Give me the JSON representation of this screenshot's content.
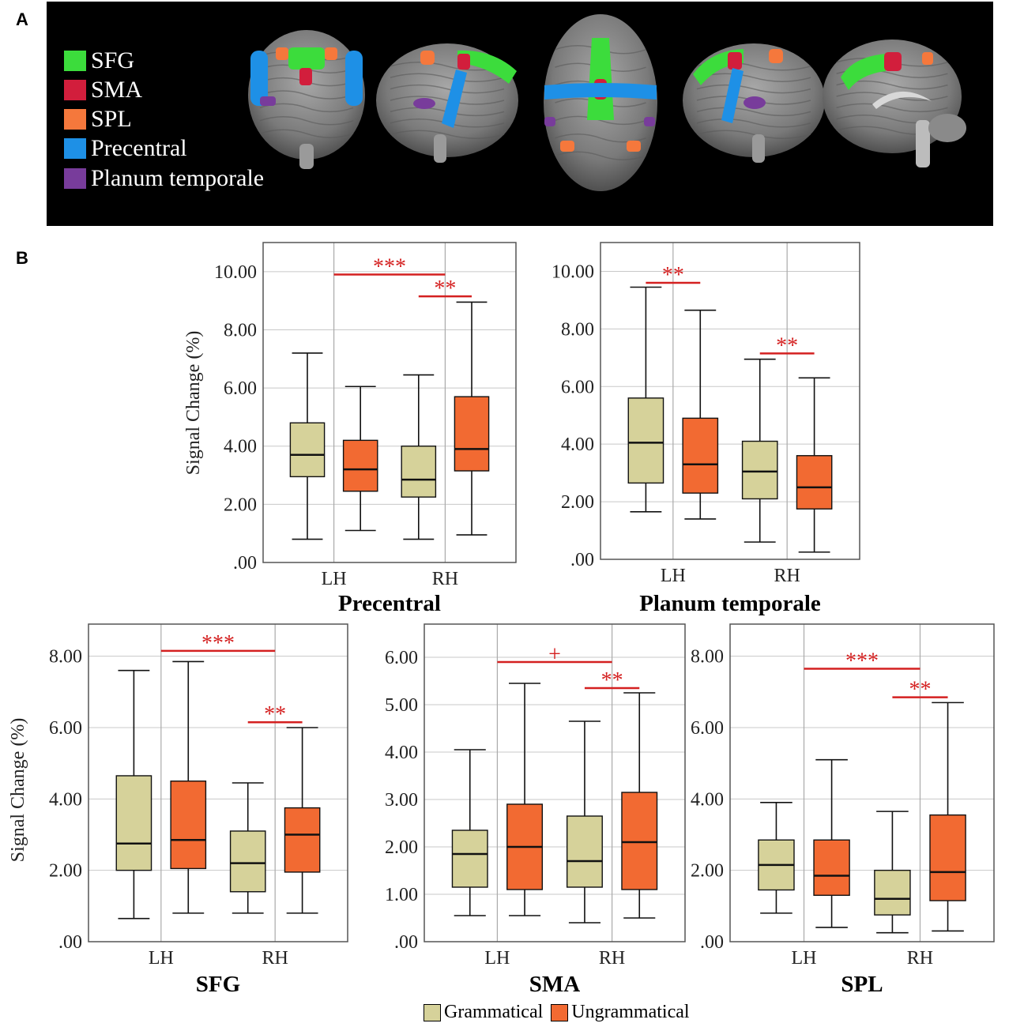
{
  "panel_a": {
    "label": "A",
    "legend": [
      {
        "label": "SFG",
        "color": "#3cdc3c"
      },
      {
        "label": "SMA",
        "color": "#d21e3c"
      },
      {
        "label": "SPL",
        "color": "#f5783c"
      },
      {
        "label": "Precentral",
        "color": "#1e90e6"
      },
      {
        "label": "Planum temporale",
        "color": "#783c9b"
      }
    ],
    "views": [
      "anterior-view",
      "left-lateral-view",
      "superior-view",
      "right-lateral-view",
      "medial-view"
    ]
  },
  "panel_b": {
    "label": "B"
  },
  "colors": {
    "grammatical": "#d6d29a",
    "ungrammatical": "#f26a32",
    "significance": "#d42020"
  },
  "legend_bottom": [
    "Grammatical",
    "Ungrammatical"
  ],
  "chart_data": [
    {
      "type": "boxplot",
      "title": "Precentral",
      "ylabel": "Signal Change (%)",
      "ylim": [
        0,
        11
      ],
      "yticks": [
        0,
        2,
        4,
        6,
        8,
        10
      ],
      "ytick_labels": [
        ".00",
        "2.00",
        "4.00",
        "6.00",
        "8.00",
        "10.00"
      ],
      "categories": [
        "LH",
        "RH"
      ],
      "grid": true,
      "series": [
        {
          "name": "Grammatical",
          "boxes": [
            {
              "min": 0.8,
              "q1": 2.95,
              "median": 3.7,
              "q3": 4.8,
              "max": 7.2
            },
            {
              "min": 0.8,
              "q1": 2.25,
              "median": 2.85,
              "q3": 4.0,
              "max": 6.45
            }
          ]
        },
        {
          "name": "Ungrammatical",
          "boxes": [
            {
              "min": 1.1,
              "q1": 2.45,
              "median": 3.2,
              "q3": 4.2,
              "max": 6.05
            },
            {
              "min": 0.95,
              "q1": 3.15,
              "median": 3.9,
              "q3": 5.7,
              "max": 8.95
            }
          ]
        }
      ],
      "annotations": [
        {
          "text": "***",
          "from": "LH-center",
          "to": "RH-center",
          "y": 9.9
        },
        {
          "text": "**",
          "from": "RH-grammatical",
          "to": "RH-ungrammatical",
          "y": 9.15
        }
      ]
    },
    {
      "type": "boxplot",
      "title": "Planum temporale",
      "ylabel": "",
      "ylim": [
        0,
        11
      ],
      "yticks": [
        0,
        2,
        4,
        6,
        8,
        10
      ],
      "ytick_labels": [
        ".00",
        "2.00",
        "4.00",
        "6.00",
        "8.00",
        "10.00"
      ],
      "categories": [
        "LH",
        "RH"
      ],
      "grid": true,
      "series": [
        {
          "name": "Grammatical",
          "boxes": [
            {
              "min": 1.65,
              "q1": 2.65,
              "median": 4.05,
              "q3": 5.6,
              "max": 9.45
            },
            {
              "min": 0.6,
              "q1": 2.1,
              "median": 3.05,
              "q3": 4.1,
              "max": 6.95
            }
          ]
        },
        {
          "name": "Ungrammatical",
          "boxes": [
            {
              "min": 1.4,
              "q1": 2.3,
              "median": 3.3,
              "q3": 4.9,
              "max": 8.65
            },
            {
              "min": 0.25,
              "q1": 1.75,
              "median": 2.5,
              "q3": 3.6,
              "max": 6.3
            }
          ]
        }
      ],
      "annotations": [
        {
          "text": "**",
          "from": "LH-grammatical",
          "to": "LH-ungrammatical",
          "y": 9.6
        },
        {
          "text": "**",
          "from": "RH-grammatical",
          "to": "RH-ungrammatical",
          "y": 7.15
        }
      ]
    },
    {
      "type": "boxplot",
      "title": "SFG",
      "ylabel": "Signal Change (%)",
      "ylim": [
        0,
        8.9
      ],
      "yticks": [
        0,
        2,
        4,
        6,
        8
      ],
      "ytick_labels": [
        ".00",
        "2.00",
        "4.00",
        "6.00",
        "8.00"
      ],
      "categories": [
        "LH",
        "RH"
      ],
      "grid": true,
      "series": [
        {
          "name": "Grammatical",
          "boxes": [
            {
              "min": 0.65,
              "q1": 2.0,
              "median": 2.75,
              "q3": 4.65,
              "max": 7.6
            },
            {
              "min": 0.8,
              "q1": 1.4,
              "median": 2.2,
              "q3": 3.1,
              "max": 4.45
            }
          ]
        },
        {
          "name": "Ungrammatical",
          "boxes": [
            {
              "min": 0.8,
              "q1": 2.05,
              "median": 2.85,
              "q3": 4.5,
              "max": 7.85
            },
            {
              "min": 0.8,
              "q1": 1.95,
              "median": 3.0,
              "q3": 3.75,
              "max": 6.0
            }
          ]
        }
      ],
      "annotations": [
        {
          "text": "***",
          "from": "LH-center",
          "to": "RH-center",
          "y": 8.15
        },
        {
          "text": "**",
          "from": "RH-grammatical",
          "to": "RH-ungrammatical",
          "y": 6.15
        }
      ]
    },
    {
      "type": "boxplot",
      "title": "SMA",
      "ylabel": "",
      "ylim": [
        0,
        6.7
      ],
      "yticks": [
        0,
        1,
        2,
        3,
        4,
        5,
        6
      ],
      "ytick_labels": [
        ".00",
        "1.00",
        "2.00",
        "3.00",
        "4.00",
        "5.00",
        "6.00"
      ],
      "categories": [
        "LH",
        "RH"
      ],
      "grid": true,
      "series": [
        {
          "name": "Grammatical",
          "boxes": [
            {
              "min": 0.55,
              "q1": 1.15,
              "median": 1.85,
              "q3": 2.35,
              "max": 4.05
            },
            {
              "min": 0.4,
              "q1": 1.15,
              "median": 1.7,
              "q3": 2.65,
              "max": 4.65
            }
          ]
        },
        {
          "name": "Ungrammatical",
          "boxes": [
            {
              "min": 0.55,
              "q1": 1.1,
              "median": 2.0,
              "q3": 2.9,
              "max": 5.45
            },
            {
              "min": 0.5,
              "q1": 1.1,
              "median": 2.1,
              "q3": 3.15,
              "max": 5.25
            }
          ]
        }
      ],
      "annotations": [
        {
          "text": "+",
          "from": "LH-center",
          "to": "RH-center",
          "y": 5.9
        },
        {
          "text": "**",
          "from": "RH-grammatical",
          "to": "RH-ungrammatical",
          "y": 5.35
        }
      ]
    },
    {
      "type": "boxplot",
      "title": "SPL",
      "ylabel": "",
      "ylim": [
        0,
        8.9
      ],
      "yticks": [
        0,
        2,
        4,
        6,
        8
      ],
      "ytick_labels": [
        ".00",
        "2.00",
        "4.00",
        "6.00",
        "8.00"
      ],
      "categories": [
        "LH",
        "RH"
      ],
      "grid": true,
      "series": [
        {
          "name": "Grammatical",
          "boxes": [
            {
              "min": 0.8,
              "q1": 1.45,
              "median": 2.15,
              "q3": 2.85,
              "max": 3.9
            },
            {
              "min": 0.25,
              "q1": 0.75,
              "median": 1.2,
              "q3": 2.0,
              "max": 3.65
            }
          ]
        },
        {
          "name": "Ungrammatical",
          "boxes": [
            {
              "min": 0.4,
              "q1": 1.3,
              "median": 1.85,
              "q3": 2.85,
              "max": 5.1
            },
            {
              "min": 0.3,
              "q1": 1.15,
              "median": 1.95,
              "q3": 3.55,
              "max": 6.7
            }
          ]
        }
      ],
      "annotations": [
        {
          "text": "***",
          "from": "LH-center",
          "to": "RH-center",
          "y": 7.65
        },
        {
          "text": "**",
          "from": "RH-grammatical",
          "to": "RH-ungrammatical",
          "y": 6.85
        }
      ]
    }
  ]
}
